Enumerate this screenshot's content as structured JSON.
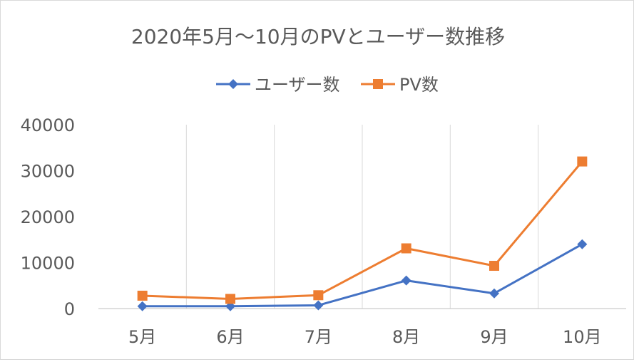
{
  "chart_data": {
    "type": "line",
    "title": "2020年5月～10月のPVとユーザー数推移",
    "categories": [
      "5月",
      "6月",
      "7月",
      "8月",
      "9月",
      "10月"
    ],
    "series": [
      {
        "name": "ユーザー数",
        "color": "#4472c4",
        "marker": "diamond",
        "values": [
          500,
          500,
          700,
          6100,
          3300,
          14000
        ]
      },
      {
        "name": "PV数",
        "color": "#ed7d31",
        "marker": "square",
        "values": [
          2800,
          2100,
          2900,
          13100,
          9300,
          32000
        ]
      }
    ],
    "ylim": [
      0,
      40000
    ],
    "yticks": [
      "0",
      "10000",
      "20000",
      "30000",
      "40000"
    ],
    "xlabel": "",
    "ylabel": "",
    "legend_position": "top",
    "grid": "vertical"
  }
}
